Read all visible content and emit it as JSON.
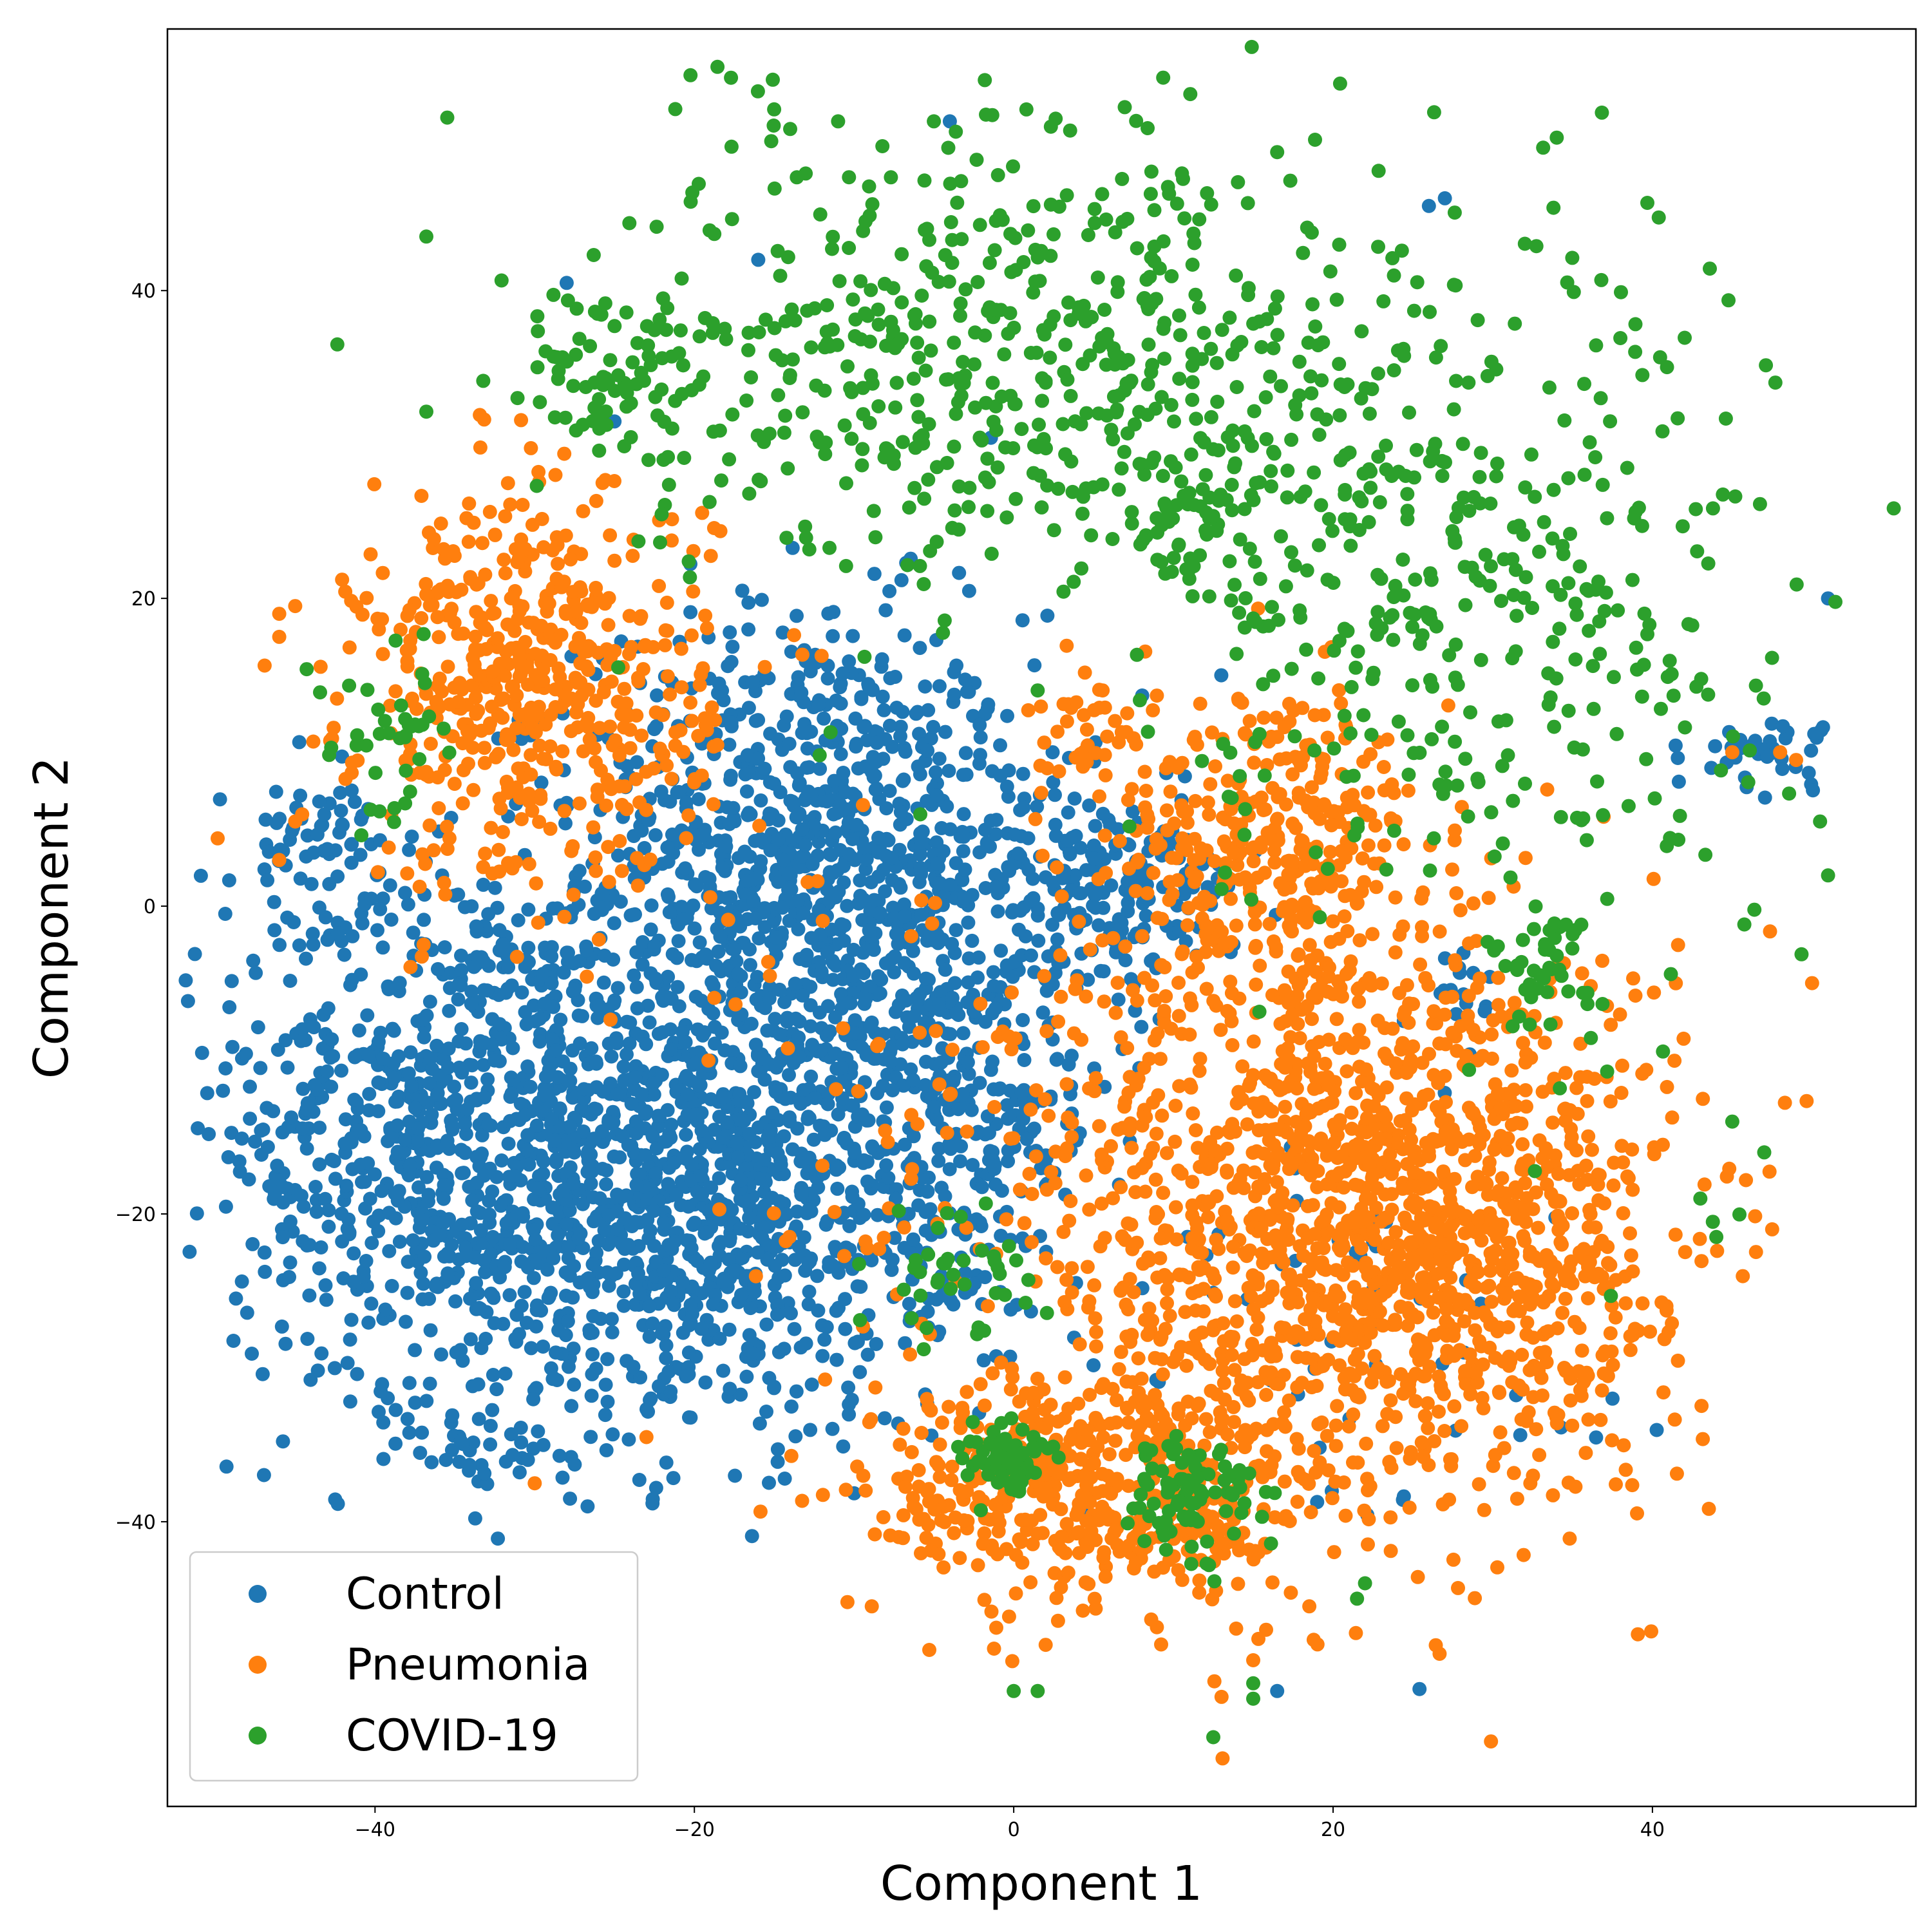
{
  "chart_data": {
    "type": "scatter",
    "title": "",
    "xlabel": "Component 1",
    "ylabel": "Component 2",
    "xlim": [
      -53,
      56.5
    ],
    "ylim": [
      -58.5,
      57
    ],
    "xticks": [
      -40,
      -20,
      0,
      20,
      40
    ],
    "yticks": [
      -40,
      -20,
      0,
      20,
      40
    ],
    "xtick_labels": [
      "−40",
      "−20",
      "0",
      "20",
      "40"
    ],
    "ytick_labels": [
      "−40",
      "−20",
      "0",
      "20",
      "40"
    ],
    "grid": false,
    "legend_position": "bottom-left",
    "series": [
      {
        "name": "Control",
        "color": "#1f77b4",
        "points_per_cluster_estimate": "dense",
        "clusters": [
          {
            "cx": -13,
            "cy": 3,
            "sx": 7,
            "sy": 8,
            "n": 900
          },
          {
            "cx": -33,
            "cy": -15,
            "sx": 8,
            "sy": 9,
            "n": 1100
          },
          {
            "cx": -18,
            "cy": -20,
            "sx": 7,
            "sy": 7,
            "n": 700
          },
          {
            "cx": -4,
            "cy": -12,
            "sx": 5,
            "sy": 8,
            "n": 400
          },
          {
            "cx": 6,
            "cy": 1,
            "sx": 4,
            "sy": 3,
            "n": 180
          },
          {
            "cx": -44,
            "cy": 4,
            "sx": 2.5,
            "sy": 2.5,
            "n": 60
          },
          {
            "cx": -33,
            "cy": -36,
            "sx": 2,
            "sy": 1.2,
            "n": 25
          },
          {
            "cx": 47,
            "cy": 10,
            "sx": 2.2,
            "sy": 1.2,
            "n": 40
          },
          {
            "cx": 28,
            "cy": -5,
            "sx": 1.5,
            "sy": 1,
            "n": 15
          },
          {
            "cx": 20,
            "cy": -25,
            "sx": 8,
            "sy": 8,
            "n": 60
          }
        ],
        "outliers": [
          [
            -28,
            40.5
          ],
          [
            -25,
            31.5
          ],
          [
            -4,
            51
          ],
          [
            -16,
            42
          ],
          [
            13,
            15
          ],
          [
            -17,
            20.5
          ],
          [
            51,
            20
          ],
          [
            16.5,
            -51
          ],
          [
            37.5,
            -32
          ],
          [
            26,
            45.5
          ],
          [
            27,
            46
          ]
        ]
      },
      {
        "name": "Pneumonia",
        "color": "#ff7f0e",
        "clusters": [
          {
            "cx": -30,
            "cy": 14,
            "sx": 5.5,
            "sy": 6.5,
            "n": 550
          },
          {
            "cx": 16,
            "cy": 4,
            "sx": 5,
            "sy": 5,
            "n": 350
          },
          {
            "cx": 20,
            "cy": -20,
            "sx": 10,
            "sy": 10,
            "n": 1400
          },
          {
            "cx": 5,
            "cy": -38,
            "sx": 7,
            "sy": 4,
            "n": 500
          },
          {
            "cx": 30,
            "cy": -22,
            "sx": 5,
            "sy": 6,
            "n": 300
          },
          {
            "cx": -12,
            "cy": -15,
            "sx": 6,
            "sy": 10,
            "n": 40
          },
          {
            "cx": 5,
            "cy": 11,
            "sx": 2,
            "sy": 2,
            "n": 40
          }
        ],
        "outliers": [
          [
            -46,
            19
          ],
          [
            -45,
            19.5
          ],
          [
            -46,
            17.5
          ],
          [
            -45,
            5.5
          ],
          [
            -46,
            3
          ],
          [
            -30,
            -37.5
          ],
          [
            -23,
            -34.5
          ],
          [
            45,
            10
          ],
          [
            48,
            10
          ],
          [
            49,
            9.5
          ],
          [
            50,
            -5
          ],
          [
            47.5,
            -21
          ],
          [
            2,
            -48
          ],
          [
            15,
            -49
          ]
        ]
      },
      {
        "name": "COVID-19",
        "color": "#2ca02c",
        "clusters": [
          {
            "cx": 0,
            "cy": 36,
            "sx": 13,
            "sy": 8,
            "n": 600
          },
          {
            "cx": 25,
            "cy": 22,
            "sx": 10,
            "sy": 10,
            "n": 300
          },
          {
            "cx": 38,
            "cy": 15,
            "sx": 7,
            "sy": 14,
            "n": 120
          },
          {
            "cx": -25,
            "cy": 34,
            "sx": 3,
            "sy": 3,
            "n": 60
          },
          {
            "cx": -39,
            "cy": 12,
            "sx": 2,
            "sy": 3,
            "n": 40
          },
          {
            "cx": -0.5,
            "cy": -36,
            "sx": 1.5,
            "sy": 1.5,
            "n": 60
          },
          {
            "cx": 11,
            "cy": -38,
            "sx": 2,
            "sy": 2,
            "n": 90
          },
          {
            "cx": 10,
            "cy": 24,
            "sx": 1.5,
            "sy": 1.5,
            "n": 30
          },
          {
            "cx": 33,
            "cy": -4,
            "sx": 1.5,
            "sy": 2,
            "n": 40
          },
          {
            "cx": -4,
            "cy": -24,
            "sx": 3,
            "sy": 2,
            "n": 40
          }
        ],
        "outliers": [
          [
            0,
            -51
          ],
          [
            1.5,
            -51
          ],
          [
            12.5,
            -54
          ],
          [
            15,
            -50.5
          ],
          [
            15,
            -51.5
          ],
          [
            45,
            -14
          ],
          [
            47,
            -16
          ],
          [
            43,
            -19
          ],
          [
            44,
            -21.5
          ],
          [
            50.5,
            5.5
          ],
          [
            51,
            2
          ],
          [
            -5,
            51
          ],
          [
            -11,
            51
          ],
          [
            -14,
            50.5
          ],
          [
            16.5,
            49
          ],
          [
            22,
            -44
          ],
          [
            21.5,
            -45
          ]
        ]
      }
    ]
  }
}
